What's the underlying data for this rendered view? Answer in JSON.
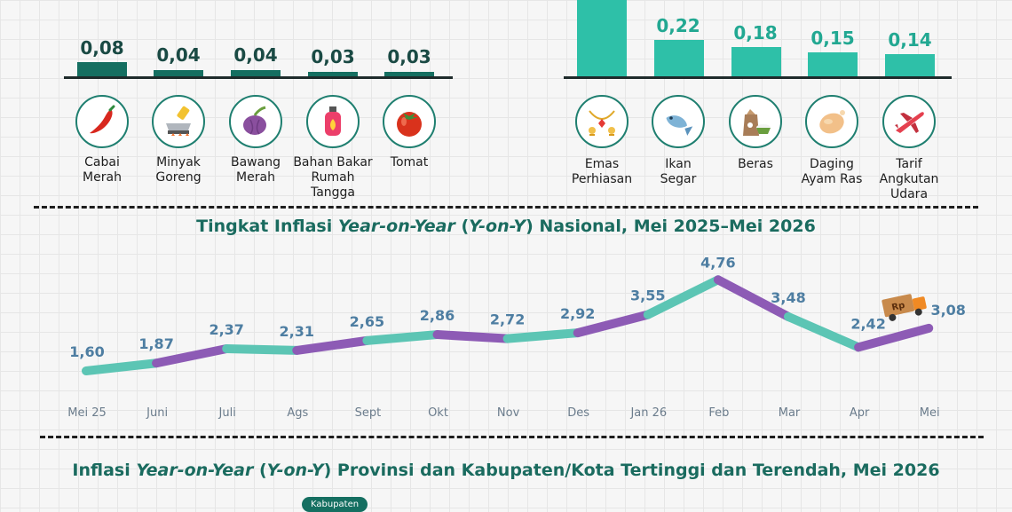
{
  "left_commodities": [
    {
      "label": "Cabai\nMerah",
      "value": "0,08",
      "icon": "chili-icon"
    },
    {
      "label": "Minyak\nGoreng",
      "value": "0,04",
      "icon": "cooking-oil-icon"
    },
    {
      "label": "Bawang\nMerah",
      "value": "0,04",
      "icon": "shallot-icon"
    },
    {
      "label": "Bahan Bakar\nRumah\nTangga",
      "value": "0,03",
      "icon": "gas-cylinder-icon"
    },
    {
      "label": "Tomat",
      "value": "0,03",
      "icon": "tomato-icon"
    }
  ],
  "right_commodities": [
    {
      "label": "Emas\nPerhiasan",
      "value": "",
      "icon": "gold-jewelry-icon"
    },
    {
      "label": "Ikan\nSegar",
      "value": "0,22",
      "icon": "fish-icon"
    },
    {
      "label": "Beras",
      "value": "0,18",
      "icon": "rice-icon"
    },
    {
      "label": "Daging\nAyam Ras",
      "value": "0,15",
      "icon": "chicken-icon"
    },
    {
      "label": "Tarif\nAngkutan\nUdara",
      "value": "0,14",
      "icon": "airplane-icon"
    }
  ],
  "line_section": {
    "title_pre": "Tingkat Inflasi ",
    "title_it1": "Year-on-Year",
    "title_mid": " (",
    "title_it2": "Y-on-Y",
    "title_post": ") Nasional, Mei 2025–Mei 2026"
  },
  "bottom_section": {
    "title_pre": "Inflasi ",
    "title_it1": "Year-on-Year",
    "title_mid": " (",
    "title_it2": "Y-on-Y",
    "title_post": ") Provinsi dan Kabupaten/Kota Tertinggi dan Terendah, Mei 2026",
    "chip": "Kabupaten"
  },
  "chart_data": {
    "type": "line",
    "title": "Tingkat Inflasi Year-on-Year (Y-on-Y) Nasional, Mei 2025–Mei 2026",
    "categories": [
      "Mei 25",
      "Juni",
      "Juli",
      "Ags",
      "Sept",
      "Okt",
      "Nov",
      "Des",
      "Jan 26",
      "Feb",
      "Mar",
      "Apr",
      "Mei"
    ],
    "values": [
      1.6,
      1.87,
      2.37,
      2.31,
      2.65,
      2.86,
      2.72,
      2.92,
      3.55,
      4.76,
      3.48,
      2.42,
      3.08
    ],
    "labels": [
      "1,60",
      "1,87",
      "2,37",
      "2,31",
      "2,65",
      "2,86",
      "2,72",
      "2,92",
      "3,55",
      "4,76",
      "3,48",
      "2,42",
      "3,08"
    ],
    "segment_colors": [
      "#5cc5b4",
      "#8d5bb5"
    ],
    "bar_values_left": [
      0.08,
      0.04,
      0.04,
      0.03,
      0.03
    ],
    "bar_values_right": [
      0.22,
      0.18,
      0.15,
      0.14
    ],
    "grid": false,
    "legend": "none"
  },
  "colors": {
    "dark_green": "#156f61",
    "teal": "#2ec0a8",
    "title_green": "#1a6b5f",
    "point_label": "#4e7ea2"
  },
  "truck_text": "Rp"
}
